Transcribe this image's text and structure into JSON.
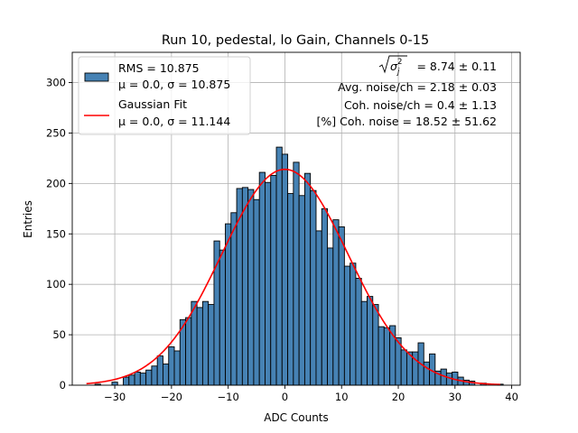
{
  "chart_data": {
    "type": "bar",
    "title": "Run 10, pedestal, lo Gain, Channels 0-15",
    "xlabel": "ADC Counts",
    "ylabel": "Entries",
    "xlim": [
      -37.5,
      41.5
    ],
    "ylim": [
      0,
      330
    ],
    "xticks": [
      -30,
      -20,
      -10,
      0,
      10,
      20,
      30,
      40
    ],
    "yticks": [
      0,
      50,
      100,
      150,
      200,
      250,
      300
    ],
    "grid": true,
    "bar_color": "#4682b4",
    "fit_color": "#ff0000",
    "bin_width": 1,
    "histogram": {
      "bin_centers": [
        -34,
        -33,
        -32,
        -31,
        -30,
        -29,
        -28,
        -27,
        -26,
        -25,
        -24,
        -23,
        -22,
        -21,
        -20,
        -19,
        -18,
        -17,
        -16,
        -15,
        -14,
        -13,
        -12,
        -11,
        -10,
        -9,
        -8,
        -7,
        -6,
        -5,
        -4,
        -3,
        -2,
        -1,
        0,
        1,
        2,
        3,
        4,
        5,
        6,
        7,
        8,
        9,
        10,
        11,
        12,
        13,
        14,
        15,
        16,
        17,
        18,
        19,
        20,
        21,
        22,
        23,
        24,
        25,
        26,
        27,
        28,
        29,
        30,
        31,
        32,
        33,
        34,
        35,
        36,
        37,
        38
      ],
      "counts": [
        0,
        1,
        0,
        0,
        3,
        0,
        8,
        10,
        13,
        12,
        15,
        19,
        29,
        21,
        38,
        34,
        65,
        67,
        83,
        77,
        83,
        80,
        143,
        134,
        160,
        171,
        195,
        196,
        194,
        184,
        211,
        201,
        208,
        236,
        229,
        190,
        221,
        188,
        210,
        193,
        153,
        175,
        136,
        164,
        157,
        118,
        121,
        106,
        83,
        88,
        80,
        58,
        57,
        59,
        47,
        35,
        33,
        33,
        42,
        23,
        31,
        14,
        16,
        12,
        13,
        8,
        5,
        4,
        0,
        2,
        0,
        0,
        1
      ]
    },
    "fit": {
      "name": "Gaussian Fit",
      "mu": 0.0,
      "sigma": 11.144,
      "amplitude": 214,
      "x_range": [
        -35,
        38
      ]
    },
    "legend": {
      "placement": "top-left",
      "entries": [
        {
          "line1": "RMS = 10.875",
          "line2": "μ = 0.0, σ = 10.875"
        },
        {
          "line1": "Gaussian Fit",
          "line2": "μ = 0.0, σ = 11.144"
        }
      ]
    },
    "annotations": {
      "sqrt_value": "= 8.74 ± 0.11",
      "avg_noise": "Avg. noise/ch = 2.18 ± 0.03",
      "coh_noise": "Coh. noise/ch = 0.4 ± 1.13",
      "coh_noise_pct": "[%] Coh. noise = 18.52 ± 51.62"
    }
  }
}
